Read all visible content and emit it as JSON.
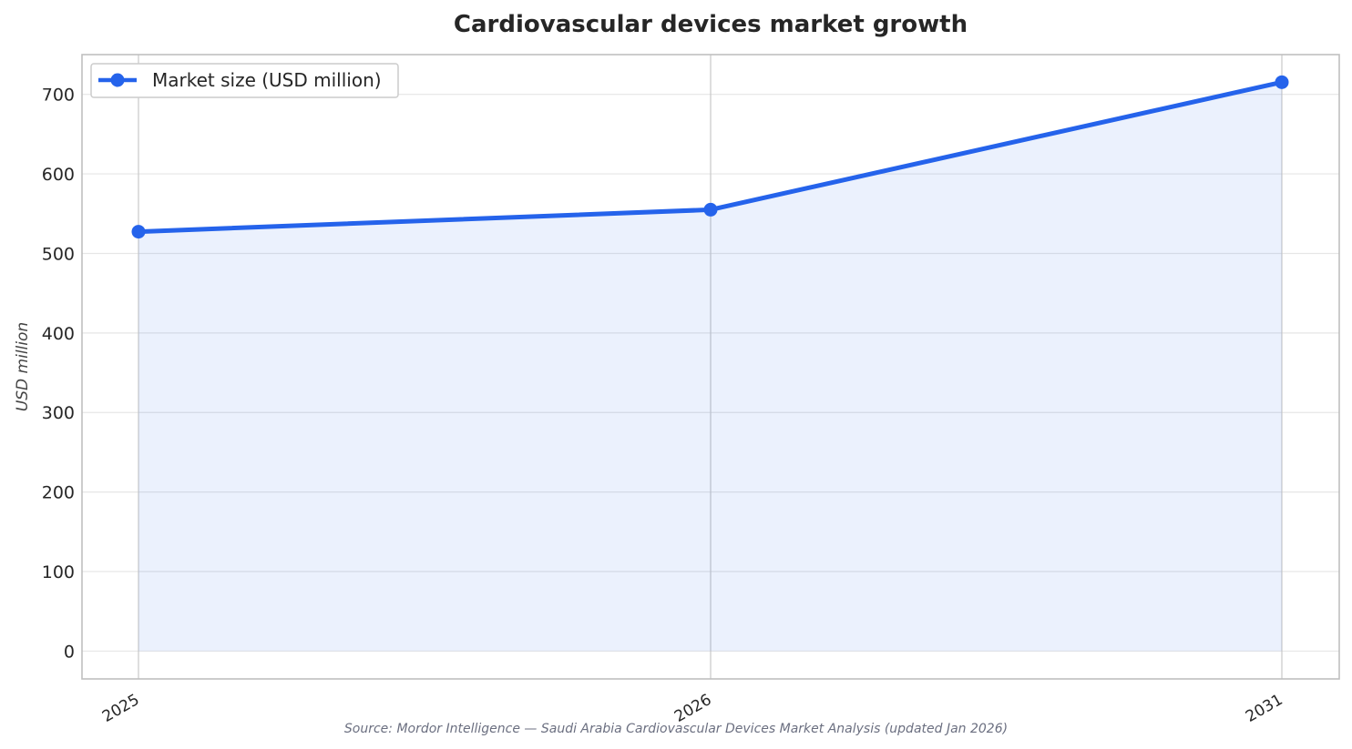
{
  "colors": {
    "line": "#2563eb",
    "area_fill": "#2563eb",
    "grid": "#e6e6e6",
    "vgrid": "#c8c8c8",
    "frame": "#bfbfbf"
  },
  "chart_data": {
    "type": "line",
    "title": "Cardiovascular devices market growth",
    "xlabel": "",
    "ylabel": "USD million",
    "categories": [
      "2025",
      "2026",
      "2031"
    ],
    "series": [
      {
        "name": "Market size (USD million)",
        "values": [
          527.3,
          555.0,
          715.3
        ]
      }
    ],
    "ylim": [
      -35,
      750
    ],
    "yticks": [
      0,
      100,
      200,
      300,
      400,
      500,
      600,
      700
    ],
    "grid": true,
    "area_fill": true,
    "legend_position": "top-left",
    "source": "Source: Mordor Intelligence — Saudi Arabia Cardiovascular Devices Market Analysis (updated Jan 2026)"
  }
}
